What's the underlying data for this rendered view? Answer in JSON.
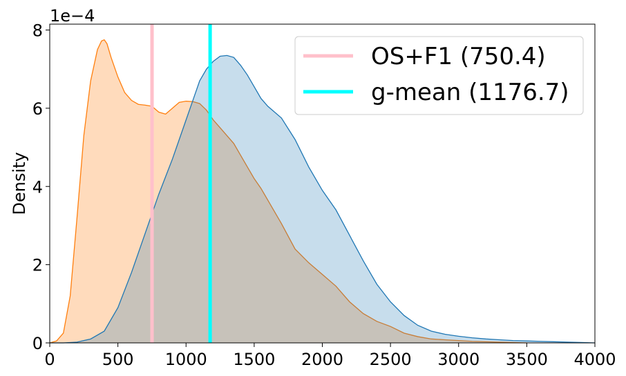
{
  "chart_data": {
    "type": "area",
    "xlabel": "",
    "ylabel": "Density",
    "y_offset_label": "1e−4",
    "xlim": [
      0,
      4000
    ],
    "ylim": [
      0,
      8.15
    ],
    "xticks": [
      0,
      500,
      1000,
      1500,
      2000,
      2500,
      3000,
      3500,
      4000
    ],
    "yticks": [
      0,
      2,
      4,
      6,
      8
    ],
    "grid": false,
    "legend_position": "top-right",
    "series": [
      {
        "color": "#ff7f0e",
        "fill_opacity": 0.28,
        "x": [
          0,
          50,
          100,
          150,
          200,
          250,
          300,
          350,
          380,
          400,
          420,
          450,
          500,
          550,
          600,
          650,
          700,
          750,
          800,
          850,
          900,
          950,
          1000,
          1050,
          1100,
          1150,
          1200,
          1250,
          1300,
          1350,
          1400,
          1450,
          1500,
          1550,
          1600,
          1700,
          1800,
          1900,
          2000,
          2100,
          2200,
          2300,
          2400,
          2500,
          2600,
          2700,
          2800,
          2900,
          3000,
          3100,
          3200,
          3300,
          3400,
          3500
        ],
        "y": [
          0,
          0.05,
          0.25,
          1.2,
          3.2,
          5.3,
          6.7,
          7.5,
          7.72,
          7.75,
          7.65,
          7.3,
          6.8,
          6.4,
          6.2,
          6.1,
          6.08,
          6.05,
          5.9,
          5.85,
          6.0,
          6.15,
          6.18,
          6.17,
          6.12,
          5.95,
          5.7,
          5.5,
          5.3,
          5.1,
          4.8,
          4.5,
          4.2,
          3.95,
          3.65,
          3.05,
          2.4,
          2.05,
          1.75,
          1.45,
          1.05,
          0.75,
          0.55,
          0.42,
          0.25,
          0.16,
          0.1,
          0.08,
          0.06,
          0.04,
          0.03,
          0.02,
          0.01,
          0.0
        ]
      },
      {
        "color": "#1f77b4",
        "fill_opacity": 0.25,
        "x": [
          0,
          100,
          200,
          300,
          400,
          500,
          600,
          700,
          800,
          900,
          1000,
          1050,
          1100,
          1150,
          1200,
          1250,
          1300,
          1350,
          1400,
          1450,
          1500,
          1550,
          1600,
          1700,
          1800,
          1900,
          2000,
          2100,
          2200,
          2300,
          2400,
          2500,
          2600,
          2700,
          2800,
          2900,
          3000,
          3100,
          3200,
          3300,
          3400,
          3500,
          3600,
          3700,
          3800,
          3900,
          4000
        ],
        "y": [
          0,
          0.0,
          0.02,
          0.1,
          0.3,
          0.9,
          1.8,
          2.8,
          3.8,
          4.7,
          5.7,
          6.2,
          6.7,
          7.0,
          7.2,
          7.33,
          7.35,
          7.3,
          7.1,
          6.85,
          6.55,
          6.25,
          6.05,
          5.75,
          5.2,
          4.5,
          3.9,
          3.4,
          2.75,
          2.1,
          1.5,
          1.05,
          0.7,
          0.45,
          0.3,
          0.22,
          0.17,
          0.13,
          0.1,
          0.08,
          0.06,
          0.05,
          0.04,
          0.03,
          0.02,
          0.01,
          0.0
        ]
      }
    ],
    "vlines": [
      {
        "label": "OS+F1 (750.4)",
        "x": 750.4,
        "color": "#ffc0cb"
      },
      {
        "label": "g-mean (1176.7)",
        "x": 1176.7,
        "color": "#00ffff"
      }
    ]
  }
}
